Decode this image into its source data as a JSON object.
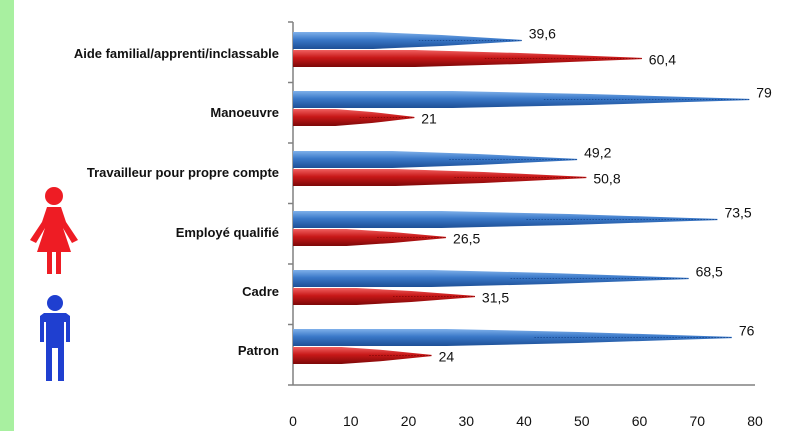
{
  "colors": {
    "men": "#3a78c8",
    "women": "#c81818",
    "men_icon": "#1f3fd0",
    "women_icon": "#ee1c24",
    "left_strip": "#a8f0a0"
  },
  "legend_icons": [
    "female-figure-icon",
    "male-figure-icon"
  ],
  "chart_data": {
    "type": "bar",
    "orientation": "horizontal",
    "categories": [
      "Aide familial/apprenti/inclassable",
      "Manoeuvre",
      "Travailleur pour propre compte",
      "Employé qualifié",
      "Cadre",
      "Patron"
    ],
    "category_labels": [
      "Aide familial/apprenti/inclassable",
      "Manoeuvre",
      "Travailleur pour propre compte",
      "Employé qualifié",
      "Cadre",
      "Patron"
    ],
    "series": [
      {
        "values": [
          39.6,
          79,
          49.2,
          73.5,
          68.5,
          76
        ],
        "labels": [
          "39,6",
          "79",
          "49,2",
          "73,5",
          "68,5",
          "76"
        ],
        "color": "#3a78c8"
      },
      {
        "values": [
          60.4,
          21,
          50.8,
          26.5,
          31.5,
          24
        ],
        "labels": [
          "60,4",
          "21",
          "50,8",
          "26,5",
          "31,5",
          "24"
        ],
        "color": "#c81818"
      }
    ],
    "xlim": [
      0,
      80
    ],
    "xticks": [
      "0",
      "10",
      "20",
      "30",
      "40",
      "50",
      "60",
      "70",
      "80"
    ],
    "grid": false,
    "legend": "none"
  }
}
